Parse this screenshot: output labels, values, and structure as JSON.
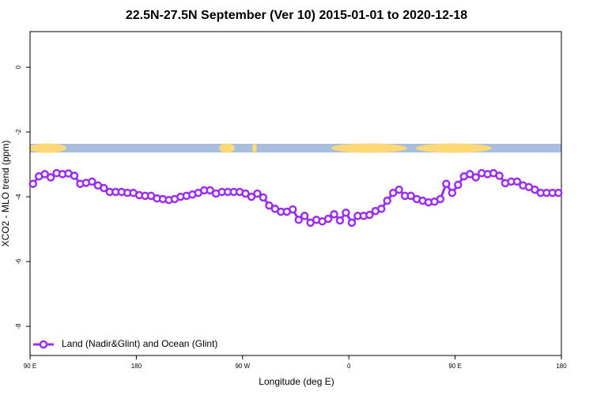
{
  "chart_data": {
    "type": "line",
    "title": "22.5N-27.5N September (Ver 10)   2015-01-01 to 2020-12-18",
    "x_label": "Longitude (deg E)",
    "y_label": "XCO2 - MLO trend (ppm)",
    "x": [
      92.5,
      97.5,
      102.5,
      107.5,
      112.5,
      117.5,
      122.5,
      127.5,
      132.5,
      137.5,
      142.5,
      147.5,
      152.5,
      157.5,
      162.5,
      167.5,
      172.5,
      177.5,
      182.5,
      187.5,
      192.5,
      197.5,
      202.5,
      207.5,
      212.5,
      217.5,
      222.5,
      227.5,
      232.5,
      237.5,
      242.5,
      247.5,
      252.5,
      257.5,
      262.5,
      267.5,
      272.5,
      277.5,
      282.5,
      287.5,
      292.5,
      297.5,
      302.5,
      307.5,
      312.5,
      317.5,
      322.5,
      327.5,
      332.5,
      337.5,
      342.5,
      347.5,
      352.5,
      357.5,
      362.5,
      367.5,
      372.5,
      377.5,
      382.5,
      387.5,
      392.5,
      397.5,
      402.5,
      407.5,
      412.5,
      417.5,
      422.5,
      427.5,
      432.5,
      437.5,
      442.5,
      447.5,
      452.5,
      457.5,
      462.5,
      467.5,
      472.5,
      477.5,
      482.5,
      487.5,
      492.5,
      497.5,
      502.5,
      507.5,
      512.5,
      517.5,
      522.5,
      527.5,
      532.5,
      537.5
    ],
    "series": [
      {
        "name": "Land (Nadir&Glint) and Ocean (Glint)",
        "color": "#9b2ff0",
        "values": [
          -3.6,
          -3.37,
          -3.3,
          -3.4,
          -3.27,
          -3.3,
          -3.28,
          -3.35,
          -3.6,
          -3.57,
          -3.53,
          -3.65,
          -3.73,
          -3.85,
          -3.85,
          -3.85,
          -3.88,
          -3.88,
          -3.95,
          -3.97,
          -3.97,
          -4.05,
          -4.07,
          -4.1,
          -4.07,
          -4.0,
          -3.97,
          -3.93,
          -3.88,
          -3.8,
          -3.8,
          -3.9,
          -3.85,
          -3.85,
          -3.85,
          -3.85,
          -3.9,
          -4.0,
          -3.9,
          -4.02,
          -4.27,
          -4.37,
          -4.46,
          -4.46,
          -4.39,
          -4.71,
          -4.59,
          -4.8,
          -4.71,
          -4.76,
          -4.68,
          -4.54,
          -4.73,
          -4.49,
          -4.8,
          -4.59,
          -4.59,
          -4.56,
          -4.44,
          -4.37,
          -4.12,
          -3.88,
          -3.78,
          -3.97,
          -3.97,
          -4.07,
          -4.12,
          -4.17,
          -4.15,
          -4.07,
          -3.6,
          -3.88,
          -3.63,
          -3.37,
          -3.3,
          -3.4,
          -3.27,
          -3.3,
          -3.27,
          -3.35,
          -3.58,
          -3.53,
          -3.53,
          -3.65,
          -3.7,
          -3.78,
          -3.88,
          -3.88,
          -3.88,
          -3.88
        ]
      }
    ],
    "xlim": [
      90,
      540
    ],
    "xticks": [
      {
        "value": 90,
        "label": "90 E"
      },
      180,
      {
        "value": 270,
        "label": "90 W"
      },
      {
        "value": 360,
        "label": "0"
      },
      {
        "value": 450,
        "label": "90 E"
      },
      {
        "value": 540,
        "label": "180"
      }
    ],
    "ylim": [
      -8.9,
      1.1
    ],
    "yticks": [
      0,
      -2,
      -4,
      -6,
      -8
    ],
    "legend": "bottom-left"
  }
}
